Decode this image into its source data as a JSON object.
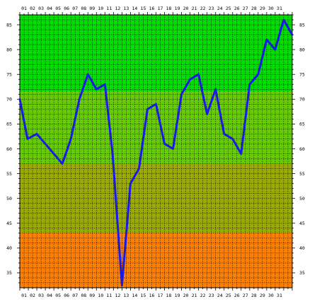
{
  "chart_data": {
    "type": "line",
    "title": "",
    "xlabel": "",
    "ylabel": "",
    "x": [
      "01",
      "02",
      "03",
      "04",
      "05",
      "06",
      "07",
      "08",
      "09",
      "10",
      "11",
      "12",
      "13",
      "14",
      "15",
      "16",
      "17",
      "18",
      "19",
      "20",
      "21",
      "22",
      "23",
      "24",
      "25",
      "26",
      "27",
      "28",
      "29",
      "30",
      "31"
    ],
    "x_tick_labels": [
      "01",
      "02",
      "03",
      "04",
      "05",
      "06",
      "07",
      "08",
      "09",
      "10",
      "11",
      "12",
      "13",
      "14",
      "15",
      "16",
      "17",
      "18",
      "19",
      "20",
      "21",
      "22",
      "23",
      "24",
      "25",
      "26",
      "27",
      "28",
      "29",
      "30",
      "31"
    ],
    "y_tick_labels": [
      "85",
      "80",
      "75",
      "70",
      "65",
      "60",
      "55",
      "50",
      "45",
      "40",
      "35"
    ],
    "series": [
      {
        "x_values": [
          0.0,
          0.9,
          2.0,
          5.0,
          6.0,
          7.0,
          8.0,
          9.0,
          10.0,
          10.9,
          12.0,
          13.0,
          14.0,
          15.0,
          16.0,
          17.0,
          18.0,
          19.0,
          20.0,
          21.0,
          22.0,
          23.0,
          24.0,
          25.0,
          26.0,
          27.0,
          28.0,
          29.0,
          30.0,
          31.0,
          32.0
        ],
        "values": [
          70,
          62,
          63,
          57,
          62,
          70,
          75,
          72,
          73,
          59,
          32.5,
          53,
          56,
          68,
          69,
          61,
          60,
          71,
          74,
          75,
          67,
          72,
          63,
          62,
          59,
          73,
          75,
          82,
          80,
          86,
          83
        ],
        "color": "#1a1ae6"
      }
    ],
    "xlim": [
      0,
      32
    ],
    "ylim": [
      32,
      87
    ],
    "grid": true,
    "x_ticks_position": "top-and-bottom",
    "y_ticks_position": "left-and-right",
    "background_bands": [
      {
        "from": 71.5,
        "to": 87,
        "color": "#00dd00"
      },
      {
        "from": 57,
        "to": 71.5,
        "color": "#66cc00"
      },
      {
        "from": 43,
        "to": 57,
        "color": "#99aa00"
      },
      {
        "from": 32,
        "to": 43,
        "color": "#ff7f00"
      }
    ],
    "line_color": "#1a1ae6",
    "grid_color": "#000000"
  }
}
